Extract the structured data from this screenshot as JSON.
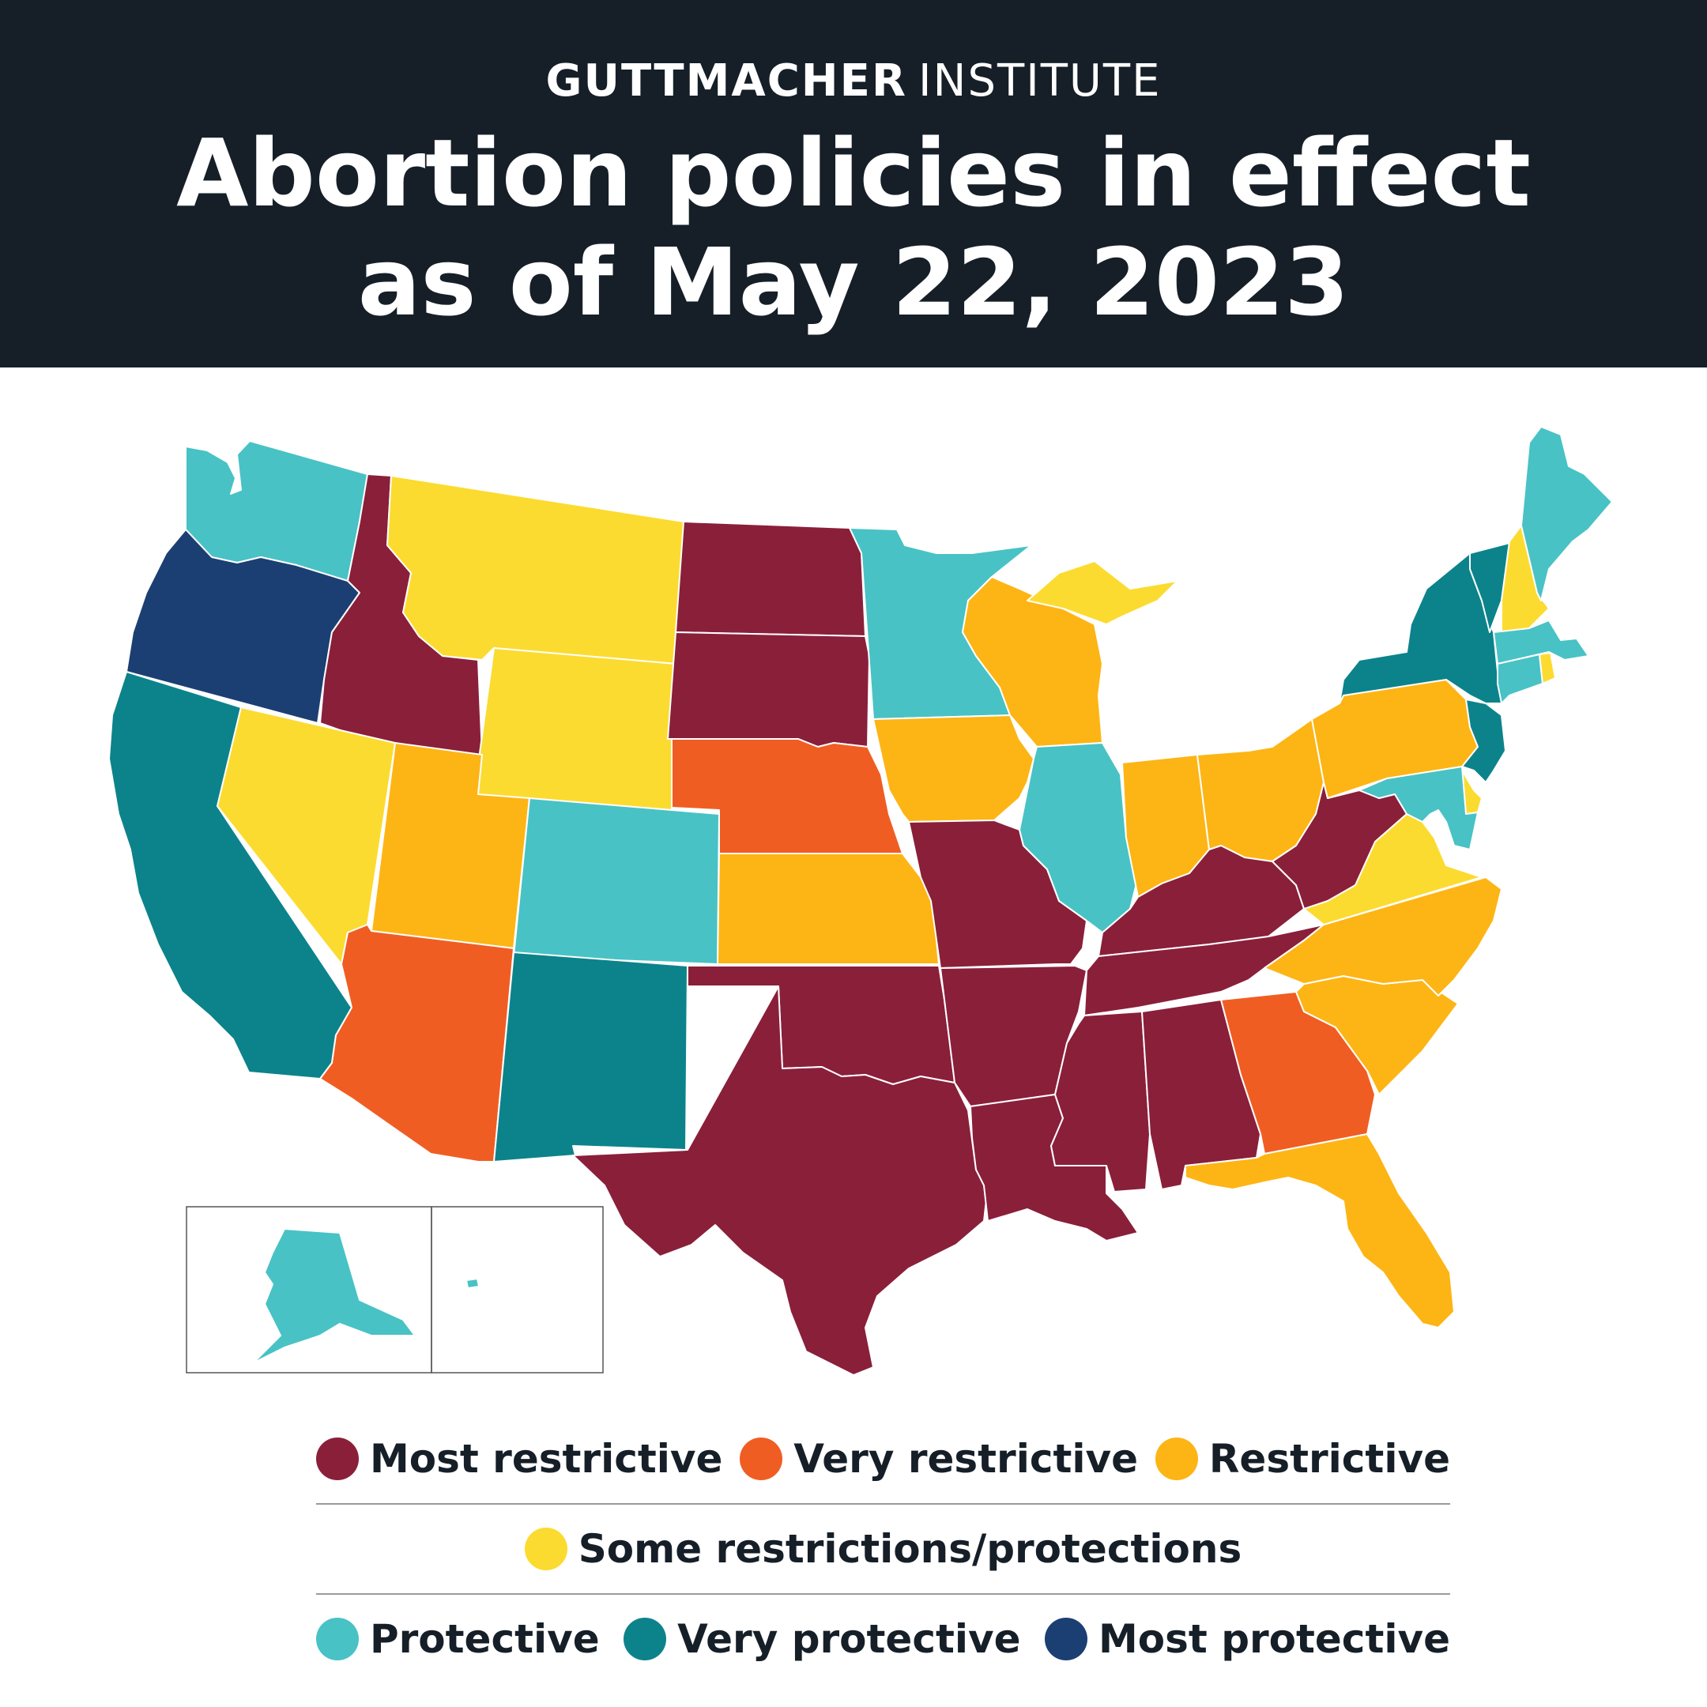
{
  "header": {
    "brand_bold": "GUTTMACHER",
    "brand_light": "INSTITUTE",
    "title_line1": "Abortion policies in effect",
    "title_line2": "as of May 22, 2023"
  },
  "colors": {
    "most_restrictive": "#8a1f3a",
    "very_restrictive": "#f05d23",
    "restrictive": "#fdb515",
    "some": "#fcdb30",
    "protective": "#48c2c5",
    "very_protective": "#0c838b",
    "most_protective": "#1c3f73"
  },
  "legend": [
    {
      "key": "most_restrictive",
      "label": "Most restrictive"
    },
    {
      "key": "very_restrictive",
      "label": "Very restrictive"
    },
    {
      "key": "restrictive",
      "label": "Restrictive"
    },
    {
      "key": "some",
      "label": "Some restrictions/protections"
    },
    {
      "key": "protective",
      "label": "Protective"
    },
    {
      "key": "very_protective",
      "label": "Very protective"
    },
    {
      "key": "most_protective",
      "label": "Most protective"
    }
  ],
  "states": {
    "WA": "protective",
    "OR": "most_protective",
    "CA": "very_protective",
    "ID": "most_restrictive",
    "NV": "some",
    "MT": "some",
    "WY": "some",
    "UT": "restrictive",
    "AZ": "very_restrictive",
    "CO": "protective",
    "NM": "very_protective",
    "ND": "most_restrictive",
    "SD": "most_restrictive",
    "NE": "very_restrictive",
    "KS": "restrictive",
    "OK": "most_restrictive",
    "TX": "most_restrictive",
    "MN": "protective",
    "IA": "restrictive",
    "MO": "most_restrictive",
    "AR": "most_restrictive",
    "LA": "most_restrictive",
    "WI": "restrictive",
    "IL": "protective",
    "MI": "some",
    "IN": "restrictive",
    "OH": "restrictive",
    "KY": "most_restrictive",
    "TN": "most_restrictive",
    "MS": "most_restrictive",
    "AL": "most_restrictive",
    "GA": "very_restrictive",
    "FL": "restrictive",
    "SC": "restrictive",
    "NC": "restrictive",
    "VA": "some",
    "WV": "most_restrictive",
    "PA": "restrictive",
    "NY": "very_protective",
    "VT": "very_protective",
    "NH": "some",
    "ME": "protective",
    "MA": "protective",
    "CT": "protective",
    "RI": "some",
    "NJ": "very_protective",
    "DE": "some",
    "MD": "protective",
    "AK": "protective",
    "HI": "protective"
  }
}
